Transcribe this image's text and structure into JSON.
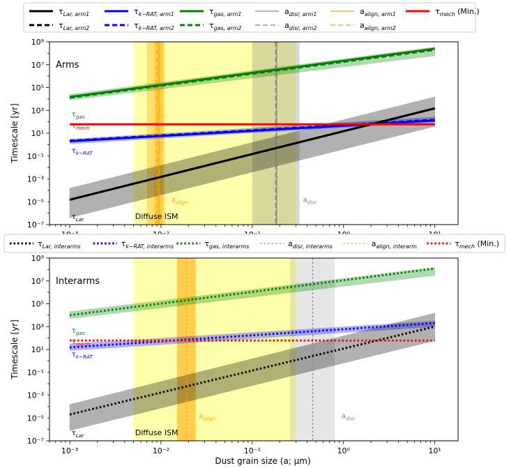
{
  "colors": {
    "lar": "#000000",
    "krat": "#0000ff",
    "gas": "#008000",
    "disr": "#808080",
    "align": "#ffa500",
    "mech": "#ff0000",
    "ism": "#ffff66",
    "text_align": "#ffa500",
    "text_disr": "#808080"
  },
  "legend_top": [
    {
      "key": "lar1",
      "label": "τLar, arm1",
      "color": "#000000",
      "style": "solid",
      "width": 3
    },
    {
      "key": "lar2",
      "label": "τLar, arm2",
      "color": "#000000",
      "style": "dashed",
      "width": 3
    },
    {
      "key": "krat1",
      "label": "τk−RAT, arm1",
      "color": "#0000ff",
      "style": "solid",
      "width": 3
    },
    {
      "key": "krat2",
      "label": "τk−RAT, arm2",
      "color": "#0000ff",
      "style": "dashed",
      "width": 3
    },
    {
      "key": "gas1",
      "label": "τgas, arm1",
      "color": "#008000",
      "style": "solid",
      "width": 3
    },
    {
      "key": "gas2",
      "label": "τgas, arm2",
      "color": "#008000",
      "style": "dashed",
      "width": 3
    },
    {
      "key": "disr1",
      "label": "adisr, arm1",
      "color": "#808080",
      "style": "solid",
      "width": 1.2
    },
    {
      "key": "disr2",
      "label": "adisr, arm2",
      "color": "#808080",
      "style": "dashed",
      "width": 1.2
    },
    {
      "key": "align1",
      "label": "aalign, arm1",
      "color": "#ffa500",
      "style": "solid",
      "width": 1.2
    },
    {
      "key": "align2",
      "label": "aalign, arm2",
      "color": "#ffa500",
      "style": "dashed",
      "width": 1.2
    },
    {
      "key": "mech",
      "label": "τmech (Min.)",
      "color": "#ff0000",
      "style": "solid",
      "width": 3
    }
  ],
  "legend_mid": [
    {
      "key": "lar",
      "label": "τLar, interarms",
      "color": "#000000",
      "style": "dotted",
      "width": 3
    },
    {
      "key": "krat",
      "label": "τk−RAT, interarms",
      "color": "#0000ff",
      "style": "dotted",
      "width": 3
    },
    {
      "key": "gas",
      "label": "τgas, interarms",
      "color": "#008000",
      "style": "dotted",
      "width": 3
    },
    {
      "key": "disr",
      "label": "adisr, interarms",
      "color": "#808080",
      "style": "dotted",
      "width": 1.2
    },
    {
      "key": "align",
      "label": "aalign, interarm",
      "color": "#ffa500",
      "style": "dotted",
      "width": 1.2
    },
    {
      "key": "mech",
      "label": "τmech (Min.)",
      "color": "#ff0000",
      "style": "dotted",
      "width": 3
    }
  ],
  "chart_data": [
    {
      "type": "line",
      "title": "Arms",
      "xlabel": "Dust grain size (a; μm)",
      "ylabel": "Timescale [yr]",
      "xscale": "log",
      "yscale": "log",
      "xlim": [
        0.0006,
        18
      ],
      "ylim": [
        1e-07,
        1000000000.0
      ],
      "x_ticks": [
        "10⁻³",
        "10⁻²",
        "10⁻¹",
        "10⁰",
        "10¹"
      ],
      "y_ticks": [
        "10⁻⁷",
        "10⁻⁵",
        "10⁻³",
        "10⁻¹",
        "10¹",
        "10³",
        "10⁵",
        "10⁷",
        "10⁹"
      ],
      "regions": [
        {
          "name": "Diffuse ISM",
          "x": [
            0.005,
            0.3
          ],
          "color": "#ffff66",
          "opacity": 0.55
        },
        {
          "name": "align-band",
          "x": [
            0.007,
            0.011
          ],
          "color": "#ffa500",
          "opacity": 0.35
        },
        {
          "name": "align-band-core",
          "x": [
            0.0085,
            0.0105
          ],
          "color": "#ffa500",
          "opacity": 0.35
        },
        {
          "name": "disr-band",
          "x": [
            0.1,
            0.33
          ],
          "color": "#808080",
          "opacity": 0.3
        }
      ],
      "series": [
        {
          "name": "τgas, arm1",
          "key": "gas",
          "style": "solid",
          "x": [
            0.001,
            10
          ],
          "y": [
            15000.0,
            250000000.0
          ],
          "band_low": [
            8000.0,
            60000000.0
          ],
          "band_high": [
            25000.0,
            350000000.0
          ]
        },
        {
          "name": "τgas, arm2",
          "key": "gas",
          "style": "dashed",
          "x": [
            0.001,
            10
          ],
          "y": [
            13000.0,
            200000000.0
          ]
        },
        {
          "name": "τk−RAT, arm1",
          "key": "krat",
          "style": "solid",
          "x": [
            0.001,
            10
          ],
          "y": [
            2.0,
            130
          ],
          "band_low": [
            1.2,
            100
          ],
          "band_high": [
            3.0,
            260
          ]
        },
        {
          "name": "τk−RAT, arm2",
          "key": "krat",
          "style": "dashed",
          "x": [
            0.001,
            10
          ],
          "y": [
            2.2,
            150
          ]
        },
        {
          "name": "τLar, arm1",
          "key": "lar",
          "style": "solid",
          "x": [
            0.001,
            10
          ],
          "y": [
            1.5e-05,
            1500.0
          ],
          "band_low": [
            4e-07,
            40
          ],
          "band_high": [
            0.00015,
            15000.0
          ]
        },
        {
          "name": "τLar, arm2",
          "key": "lar",
          "style": "dashed",
          "x": [
            0.001,
            10
          ],
          "y": [
            1.5e-05,
            1500.0
          ]
        },
        {
          "name": "τmech (Min.)",
          "key": "mech",
          "style": "solid",
          "x": [
            0.001,
            10
          ],
          "y": [
            60,
            60
          ]
        }
      ],
      "vlines": [
        {
          "name": "aalign, arm1",
          "key": "align",
          "style": "solid",
          "x": 0.0095
        },
        {
          "name": "aalign, arm2",
          "key": "align",
          "style": "dashed",
          "x": 0.009
        },
        {
          "name": "adisr, arm1",
          "key": "disr",
          "style": "solid",
          "x": 0.185
        },
        {
          "name": "adisr, arm2",
          "key": "disr",
          "style": "dashed",
          "x": 0.18
        }
      ],
      "labels": [
        {
          "text": "τgas",
          "x": 0.00105,
          "y": 300.0,
          "key": "gas"
        },
        {
          "text": "τmech",
          "x": 0.00105,
          "y": 30.0,
          "key": "mech"
        },
        {
          "text": "τk−RAT",
          "x": 0.00105,
          "y": 0.2,
          "key": "krat"
        },
        {
          "text": "τLar",
          "x": 0.00105,
          "y": 3e-07,
          "key": "lar"
        },
        {
          "text": "aalign",
          "x": 0.013,
          "y": 1e-05,
          "key": "text_align"
        },
        {
          "text": "adisr",
          "x": 0.36,
          "y": 1e-05,
          "key": "text_disr"
        },
        {
          "text": "Diffuse ISM",
          "x": 0.0052,
          "y": 3e-07,
          "key": "lar"
        }
      ]
    },
    {
      "type": "line",
      "title": "Interarms",
      "xlabel": "Dust grain size (a; μm)",
      "ylabel": "Timescale [yr]",
      "xscale": "log",
      "yscale": "log",
      "xlim": [
        0.0006,
        18
      ],
      "ylim": [
        1e-07,
        1000000000.0
      ],
      "x_ticks": [
        "10⁻³",
        "10⁻²",
        "10⁻¹",
        "10⁰",
        "10¹"
      ],
      "y_ticks": [
        "10⁻⁷",
        "10⁻⁵",
        "10⁻³",
        "10⁻¹",
        "10¹",
        "10³",
        "10⁵",
        "10⁷",
        "10⁹"
      ],
      "regions": [
        {
          "name": "Diffuse ISM",
          "x": [
            0.005,
            0.3
          ],
          "color": "#ffff66",
          "opacity": 0.55
        },
        {
          "name": "align-band",
          "x": [
            0.015,
            0.024
          ],
          "color": "#ffa500",
          "opacity": 0.55
        },
        {
          "name": "disr-band",
          "x": [
            0.26,
            0.8
          ],
          "color": "#808080",
          "opacity": 0.2
        }
      ],
      "series": [
        {
          "name": "τgas, interarms",
          "key": "gas",
          "style": "dotted",
          "x": [
            0.001,
            10
          ],
          "y": [
            10000.0,
            120000000.0
          ],
          "band_low": [
            5000.0,
            30000000.0
          ],
          "band_high": [
            20000.0,
            150000000.0
          ]
        },
        {
          "name": "τk−RAT, interarms",
          "key": "krat",
          "style": "dotted",
          "x": [
            0.001,
            10
          ],
          "y": [
            15,
            2000
          ],
          "band_low": [
            8,
            1000
          ],
          "band_high": [
            30,
            3000
          ]
        },
        {
          "name": "τLar, interarms",
          "key": "lar",
          "style": "dotted",
          "x": [
            0.001,
            10
          ],
          "y": [
            2e-05,
            1000.0
          ],
          "band_low": [
            8e-07,
            60
          ],
          "band_high": [
            0.00015,
            15000.0
          ]
        },
        {
          "name": "τmech (Min.)",
          "key": "mech",
          "style": "dotted",
          "x": [
            0.001,
            10
          ],
          "y": [
            60,
            60
          ]
        }
      ],
      "vlines": [
        {
          "name": "aalign, interarm",
          "key": "align",
          "style": "dotted",
          "x": 0.019
        },
        {
          "name": "adisr, interarms",
          "key": "disr",
          "style": "dotted",
          "x": 0.46
        }
      ],
      "labels": [
        {
          "text": "τgas",
          "x": 0.00105,
          "y": 300.0,
          "key": "gas"
        },
        {
          "text": "τmech",
          "x": 0.00105,
          "y": 30.0,
          "key": "mech"
        },
        {
          "text": "τk−RAT",
          "x": 0.00105,
          "y": 2.5,
          "key": "krat"
        },
        {
          "text": "τLar",
          "x": 0.00105,
          "y": 3e-07,
          "key": "lar"
        },
        {
          "text": "aalign",
          "x": 0.026,
          "y": 1e-05,
          "key": "text_align"
        },
        {
          "text": "adisr",
          "x": 0.95,
          "y": 1e-05,
          "key": "text_disr"
        },
        {
          "text": "Diffuse ISM",
          "x": 0.0052,
          "y": 3e-07,
          "key": "lar"
        }
      ]
    }
  ]
}
